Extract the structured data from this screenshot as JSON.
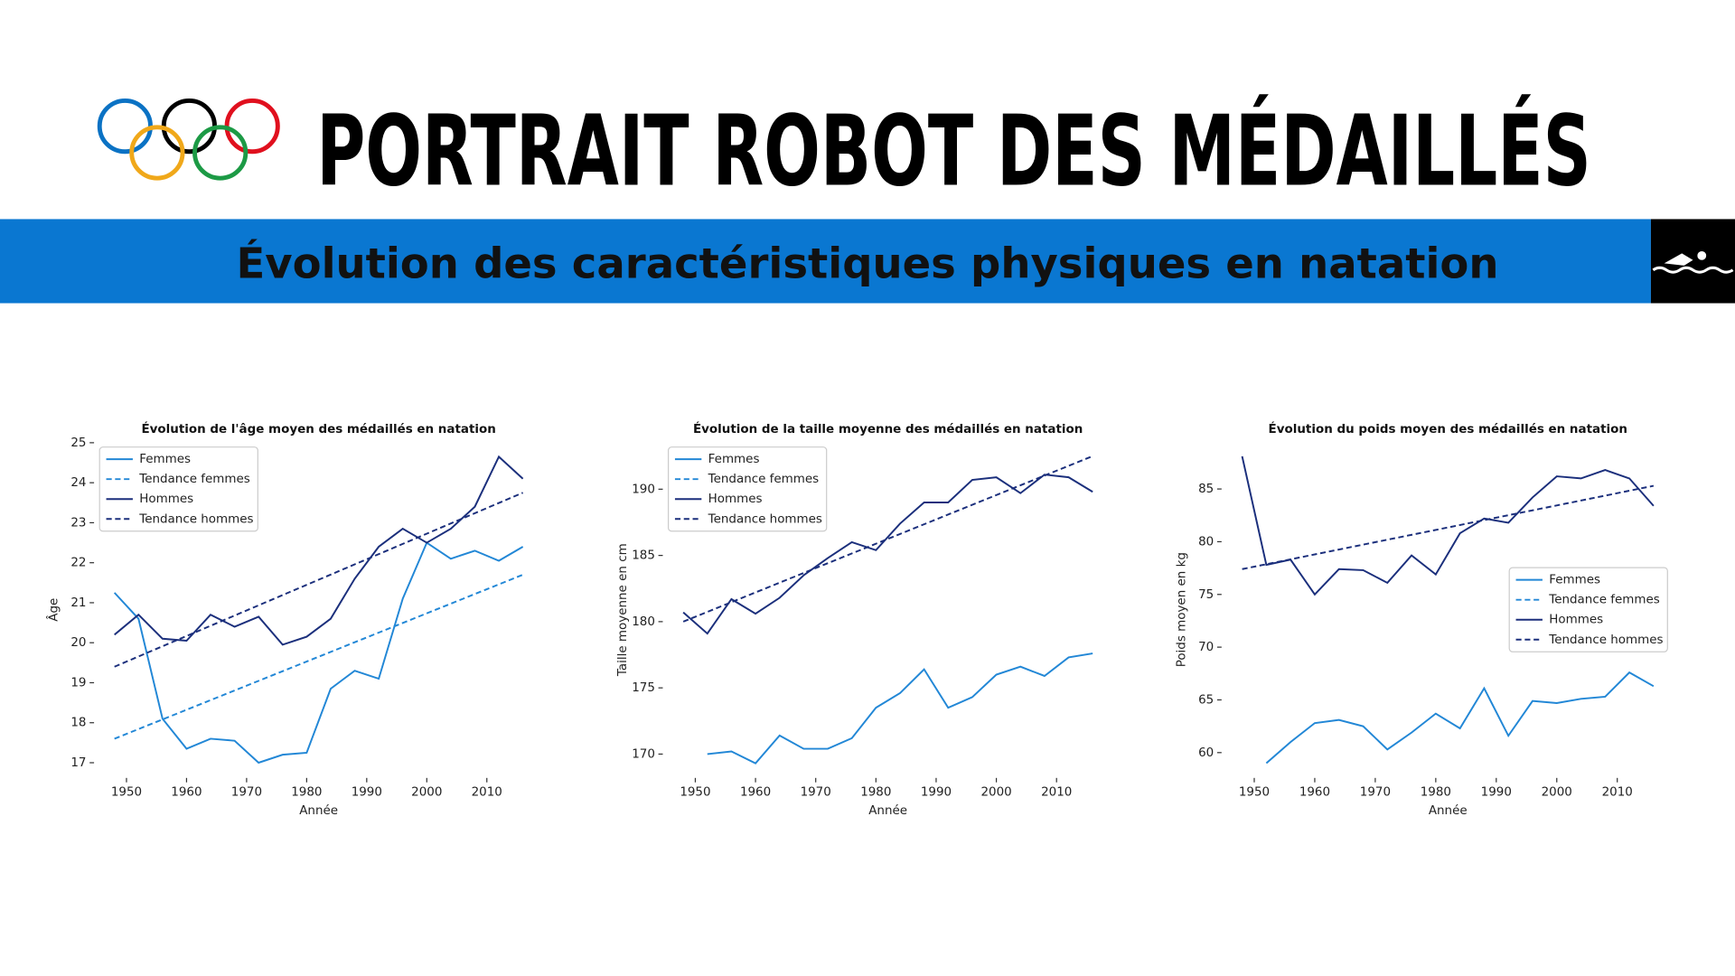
{
  "header": {
    "title": "PORTRAIT ROBOT DES MÉDAILLÉS",
    "subtitle": "Évolution des caractéristiques physiques en natation"
  },
  "chart_data": [
    {
      "type": "line",
      "title": "Évolution de l'âge moyen des médaillés en natation",
      "xlabel": "Année",
      "ylabel": "Âge",
      "x": [
        1948,
        1952,
        1956,
        1960,
        1964,
        1968,
        1972,
        1976,
        1980,
        1984,
        1988,
        1992,
        1996,
        2000,
        2004,
        2008,
        2012,
        2016
      ],
      "xlim": [
        1944.6,
        2019.4
      ],
      "xticks": [
        1950,
        1960,
        1970,
        1980,
        1990,
        2000,
        2010
      ],
      "ylim": [
        16.62,
        25.03
      ],
      "yticks": [
        17,
        18,
        19,
        20,
        21,
        22,
        23,
        24,
        25
      ],
      "legend": "upper left",
      "series": [
        {
          "name": "Femmes",
          "color": "#2287d6",
          "linestyle": "solid",
          "values": [
            21.25,
            20.6,
            18.1,
            17.35,
            17.6,
            17.55,
            17.0,
            17.2,
            17.25,
            18.85,
            19.3,
            19.1,
            21.1,
            22.5,
            22.1,
            22.3,
            22.05,
            22.4
          ]
        },
        {
          "name": "Tendance femmes",
          "color": "#2287d6",
          "linestyle": "dashed",
          "x": [
            1948,
            2016
          ],
          "values": [
            17.6,
            21.7
          ]
        },
        {
          "name": "Hommes",
          "color": "#1b2f7c",
          "linestyle": "solid",
          "values": [
            20.2,
            20.7,
            20.1,
            20.05,
            20.7,
            20.4,
            20.65,
            19.95,
            20.15,
            20.6,
            21.6,
            22.4,
            22.85,
            22.5,
            22.85,
            23.4,
            24.65,
            24.1
          ]
        },
        {
          "name": "Tendance hommes",
          "color": "#1b2f7c",
          "linestyle": "dashed",
          "x": [
            1948,
            2016
          ],
          "values": [
            19.4,
            23.75
          ]
        }
      ]
    },
    {
      "type": "line",
      "title": "Évolution de la taille moyenne des médaillés en natation",
      "xlabel": "Année",
      "ylabel": "Taille moyenne en cm",
      "x": [
        1948,
        1952,
        1956,
        1960,
        1964,
        1968,
        1972,
        1976,
        1980,
        1984,
        1988,
        1992,
        1996,
        2000,
        2004,
        2008,
        2012,
        2016
      ],
      "xlim": [
        1944.6,
        2019.4
      ],
      "xticks": [
        1950,
        1960,
        1970,
        1980,
        1990,
        2000,
        2010
      ],
      "ylim": [
        168.2,
        193.6
      ],
      "yticks": [
        170,
        175,
        180,
        185,
        190
      ],
      "legend": "upper left",
      "series": [
        {
          "name": "Femmes",
          "color": "#2287d6",
          "linestyle": "solid",
          "values": [
            null,
            170.0,
            170.2,
            169.3,
            171.4,
            170.4,
            170.4,
            171.2,
            173.5,
            174.6,
            176.4,
            173.5,
            174.3,
            176.0,
            176.6,
            175.9,
            177.3,
            177.6
          ]
        },
        {
          "name": "Tendance femmes",
          "color": "#2287d6",
          "linestyle": "dashed",
          "x": [
            1948,
            2016
          ],
          "values": [
            null,
            null
          ]
        },
        {
          "name": "Hommes",
          "color": "#1b2f7c",
          "linestyle": "solid",
          "values": [
            180.7,
            179.1,
            181.7,
            180.6,
            181.8,
            183.5,
            184.8,
            186.0,
            185.4,
            187.4,
            189.0,
            189.0,
            190.7,
            190.9,
            189.7,
            191.1,
            190.9,
            189.8
          ]
        },
        {
          "name": "Tendance hommes",
          "color": "#1b2f7c",
          "linestyle": "dashed",
          "x": [
            1948,
            2016
          ],
          "values": [
            180.0,
            192.5
          ]
        }
      ]
    },
    {
      "type": "line",
      "title": "Évolution du poids moyen des médaillés en natation",
      "xlabel": "Année",
      "ylabel": "Poids moyen en kg",
      "x": [
        1948,
        1952,
        1956,
        1960,
        1964,
        1968,
        1972,
        1976,
        1980,
        1984,
        1988,
        1992,
        1996,
        2000,
        2004,
        2008,
        2012,
        2016
      ],
      "xlim": [
        1944.6,
        2019.4
      ],
      "xticks": [
        1950,
        1960,
        1970,
        1980,
        1990,
        2000,
        2010
      ],
      "ylim": [
        57.6,
        89.5
      ],
      "yticks": [
        60,
        65,
        70,
        75,
        80,
        85
      ],
      "legend": "center right",
      "series": [
        {
          "name": "Femmes",
          "color": "#2287d6",
          "linestyle": "solid",
          "values": [
            null,
            59.0,
            61.0,
            62.8,
            63.1,
            62.5,
            60.3,
            61.9,
            63.7,
            62.3,
            66.1,
            61.6,
            64.9,
            64.7,
            65.1,
            65.3,
            67.6,
            66.3
          ]
        },
        {
          "name": "Tendance femmes",
          "color": "#2287d6",
          "linestyle": "dashed",
          "x": [
            1948,
            2016
          ],
          "values": [
            null,
            null
          ]
        },
        {
          "name": "Hommes",
          "color": "#1b2f7c",
          "linestyle": "solid",
          "values": [
            88.1,
            77.8,
            78.3,
            75.0,
            77.4,
            77.3,
            76.1,
            78.7,
            76.9,
            80.8,
            82.2,
            81.8,
            84.2,
            86.2,
            86.0,
            86.8,
            86.0,
            83.4
          ]
        },
        {
          "name": "Tendance hommes",
          "color": "#1b2f7c",
          "linestyle": "dashed",
          "x": [
            1948,
            2016
          ],
          "values": [
            77.4,
            85.3
          ]
        }
      ]
    }
  ]
}
